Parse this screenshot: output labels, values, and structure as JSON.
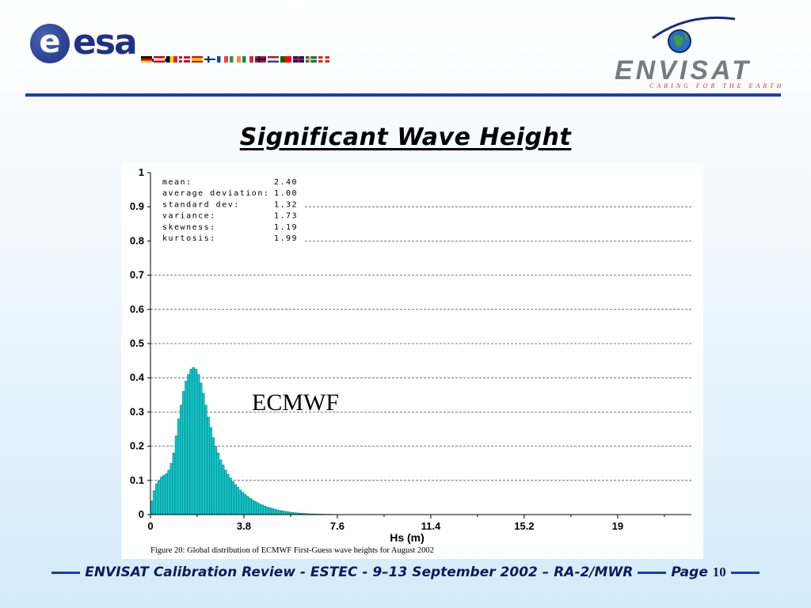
{
  "header": {
    "esa_logo_text": "esa",
    "esa_logo_letter": "e",
    "envisat_name": "ENVISAT",
    "envisat_tagline": "CARING FOR THE EARTH"
  },
  "slide": {
    "title": "Significant Wave Height",
    "model_label": "ECMWF"
  },
  "footer": {
    "text": "ENVISAT Calibration Review - ESTEC - 9–13 September 2002 – RA-2/MWR",
    "page_label": "Page",
    "page_number": "10"
  },
  "colors": {
    "brand_blue": "#1f3ba9",
    "bar_fill": "#13c5c8",
    "bar_stroke": "#0a6f72"
  },
  "chart_data": {
    "type": "bar",
    "title": "",
    "xlabel": "Hs (m)",
    "ylabel": "",
    "xlim": [
      0,
      22
    ],
    "ylim": [
      0,
      1
    ],
    "x_ticks": [
      "0",
      "3.8",
      "7.6",
      "11.4",
      "15.2",
      "19"
    ],
    "y_ticks": [
      "0",
      "0.1",
      "0.2",
      "0.3",
      "0.4",
      "0.5",
      "0.6",
      "0.7",
      "0.8",
      "0.9",
      "1"
    ],
    "grid": "horizontal dashed",
    "caption": "Figure 20: Global distribution of ECMWF First-Guess wave heights for August 2002",
    "stats": [
      {
        "label": "mean:",
        "value": "2.40"
      },
      {
        "label": "average deviation:",
        "value": "1.00"
      },
      {
        "label": "standard dev:",
        "value": "1.32"
      },
      {
        "label": "variance:",
        "value": "1.73"
      },
      {
        "label": "skewness:",
        "value": "1.19"
      },
      {
        "label": "kurtosis:",
        "value": "1.99"
      }
    ],
    "bin_width": 0.1,
    "x": [
      0.05,
      0.15,
      0.25,
      0.35,
      0.45,
      0.55,
      0.65,
      0.75,
      0.85,
      0.95,
      1.05,
      1.15,
      1.25,
      1.35,
      1.45,
      1.55,
      1.65,
      1.75,
      1.85,
      1.95,
      2.05,
      2.15,
      2.25,
      2.35,
      2.45,
      2.55,
      2.65,
      2.75,
      2.85,
      2.95,
      3.05,
      3.15,
      3.25,
      3.35,
      3.45,
      3.55,
      3.65,
      3.75,
      3.85,
      3.95,
      4.05,
      4.15,
      4.25,
      4.35,
      4.45,
      4.55,
      4.65,
      4.75,
      4.85,
      4.95,
      5.05,
      5.15,
      5.25,
      5.35,
      5.45,
      5.55,
      5.65,
      5.75,
      5.85,
      5.95,
      6.05,
      6.15,
      6.25,
      6.35,
      6.45,
      6.55,
      6.65,
      6.75,
      6.85,
      6.95,
      7.05,
      7.15,
      7.25,
      7.35,
      7.45,
      7.55,
      7.65,
      7.75,
      7.85,
      7.95,
      8.05,
      8.15,
      8.25,
      8.35,
      8.45,
      8.55,
      8.65,
      8.75,
      8.85,
      8.95,
      9.05,
      9.15,
      9.25,
      9.35,
      9.45
    ],
    "values": [
      0.04,
      0.07,
      0.09,
      0.1,
      0.11,
      0.115,
      0.12,
      0.13,
      0.15,
      0.18,
      0.23,
      0.28,
      0.32,
      0.36,
      0.39,
      0.41,
      0.425,
      0.43,
      0.425,
      0.41,
      0.385,
      0.355,
      0.32,
      0.285,
      0.255,
      0.225,
      0.2,
      0.18,
      0.16,
      0.145,
      0.13,
      0.118,
      0.107,
      0.097,
      0.088,
      0.08,
      0.072,
      0.065,
      0.059,
      0.053,
      0.048,
      0.043,
      0.039,
      0.035,
      0.031,
      0.028,
      0.025,
      0.022,
      0.02,
      0.018,
      0.016,
      0.014,
      0.012,
      0.011,
      0.0095,
      0.0085,
      0.0075,
      0.0065,
      0.0057,
      0.005,
      0.0044,
      0.0038,
      0.0033,
      0.0029,
      0.0025,
      0.0022,
      0.0019,
      0.0017,
      0.0015,
      0.0013,
      0.0011,
      0.001,
      0.0009,
      0.0008,
      0.0007,
      0.0006,
      0.0005,
      0.0005,
      0.0004,
      0.0004,
      0.0003,
      0.0003,
      0.0003,
      0.0002,
      0.0002,
      0.0002,
      0.0002,
      0.0001,
      0.0001,
      0.0001,
      0.0001,
      0.0001,
      0.0001,
      0.0001,
      0.0001
    ]
  }
}
